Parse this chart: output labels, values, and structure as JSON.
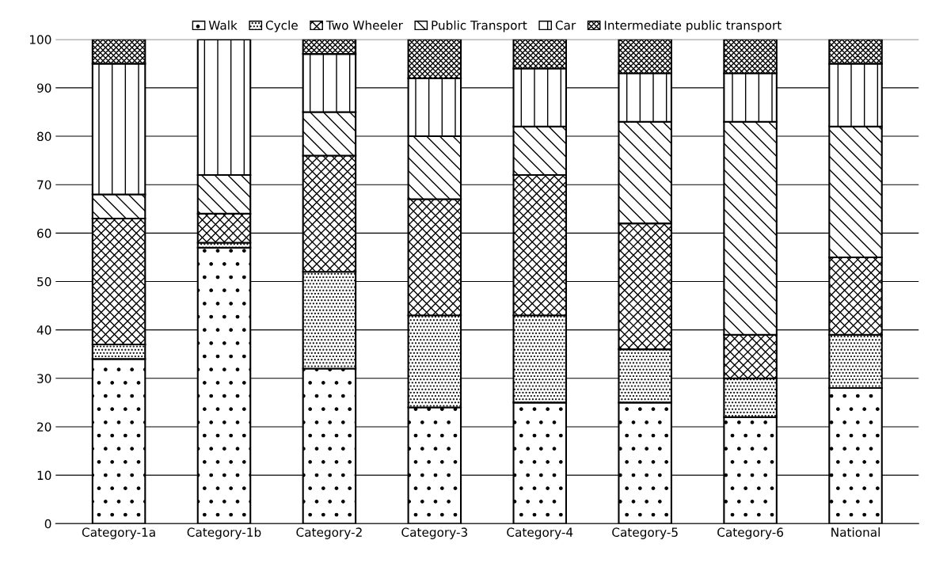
{
  "chart_data": {
    "type": "bar",
    "stacked": true,
    "categories": [
      "Category-1a",
      "Category-1b",
      "Category-2",
      "Category-3",
      "Category-4",
      "Category-5",
      "Category-6",
      "National"
    ],
    "series": [
      {
        "name": "Walk",
        "color": "#000000",
        "values": [
          34,
          57,
          32,
          24,
          25,
          25,
          22,
          28
        ]
      },
      {
        "name": "Cycle",
        "color": "#000000",
        "values": [
          3,
          1,
          20,
          19,
          18,
          11,
          8,
          11
        ]
      },
      {
        "name": "Two Wheeler",
        "color": "#000000",
        "values": [
          26,
          6,
          24,
          24,
          29,
          26,
          9,
          16
        ]
      },
      {
        "name": "Public Transport",
        "color": "#000000",
        "values": [
          5,
          8,
          9,
          13,
          10,
          21,
          44,
          27
        ]
      },
      {
        "name": "Car",
        "color": "#000000",
        "values": [
          27,
          28,
          12,
          12,
          12,
          10,
          10,
          13
        ]
      },
      {
        "name": "Intermediate public transport",
        "color": "#000000",
        "values": [
          5,
          0,
          3,
          8,
          6,
          7,
          7,
          5
        ]
      }
    ],
    "ylim": [
      0,
      100
    ],
    "yticks": [
      0,
      10,
      20,
      30,
      40,
      50,
      60,
      70,
      80,
      90,
      100
    ],
    "grid": "y",
    "legend": "top"
  }
}
